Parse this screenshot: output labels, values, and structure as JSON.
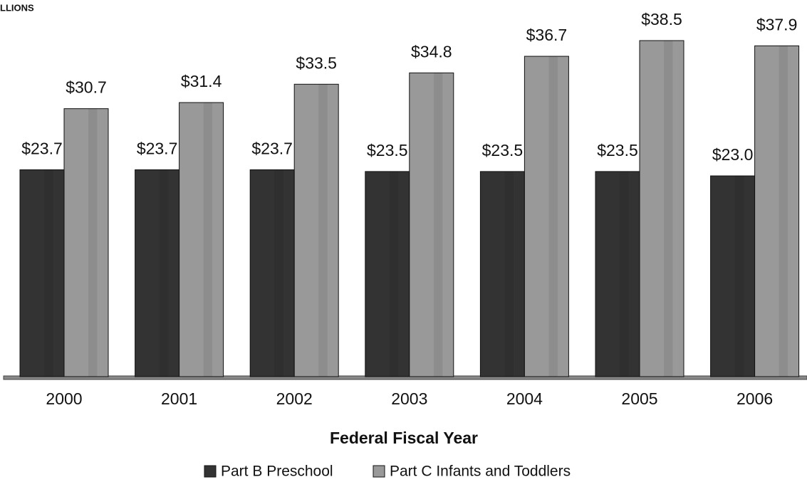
{
  "chart_data": {
    "type": "bar",
    "subtitle": "LLIONS",
    "x_label": "Federal Fiscal Year",
    "categories": [
      "2000",
      "2001",
      "2002",
      "2003",
      "2004",
      "2005",
      "2006"
    ],
    "series": [
      {
        "name": "Part B Preschool",
        "color": "#333333",
        "values": [
          23.7,
          23.7,
          23.7,
          23.5,
          23.5,
          23.5,
          23.0
        ],
        "value_labels": [
          "$23.7",
          "$23.7",
          "$23.7",
          "$23.5",
          "$23.5",
          "$23.5",
          "$23.0"
        ]
      },
      {
        "name": "Part C Infants and Toddlers",
        "color": "#999999",
        "values": [
          30.7,
          31.4,
          33.5,
          34.8,
          36.7,
          38.5,
          37.9
        ],
        "value_labels": [
          "$30.7",
          "$31.4",
          "$33.5",
          "$34.8",
          "$36.7",
          "$38.5",
          "$37.9"
        ]
      }
    ],
    "legend": "bottom"
  }
}
